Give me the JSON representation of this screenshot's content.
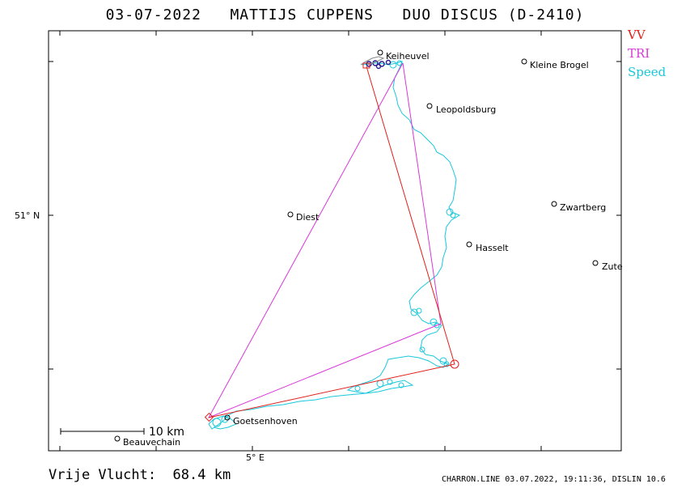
{
  "title": {
    "date": "03-07-2022",
    "pilot": "MATTIJS CUPPENS",
    "glider": "DUO DISCUS (D-2410)"
  },
  "legend": [
    {
      "label": "VV",
      "color": "#e0201c"
    },
    {
      "label": "TRI",
      "color": "#d838d8"
    },
    {
      "label": "Speed",
      "color": "#18c8dc"
    }
  ],
  "axis": {
    "lat_label": "51° N",
    "lon_label": "5° E"
  },
  "places": [
    {
      "name": "Keiheuvel"
    },
    {
      "name": "Kleine Brogel"
    },
    {
      "name": "Leopoldsburg"
    },
    {
      "name": "Diest"
    },
    {
      "name": "Zwartberg"
    },
    {
      "name": "Hasselt"
    },
    {
      "name": "Zute"
    },
    {
      "name": "Goetsenhoven"
    },
    {
      "name": "Beauvechain"
    }
  ],
  "scale": {
    "label": "10 km"
  },
  "footer": {
    "distance_label": "Vrije Vlucht:",
    "distance_value": "68.4 km",
    "meta": "CHARRON.LINE 03.07.2022, 19:11:36, DISLIN 10.6"
  }
}
